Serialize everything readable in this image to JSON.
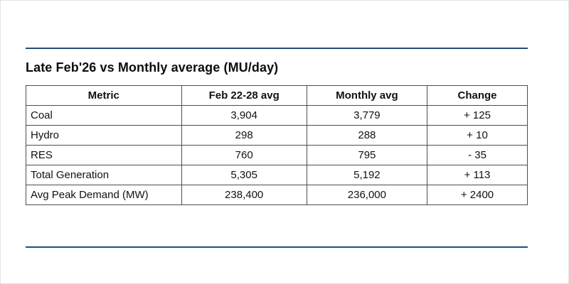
{
  "accent_color": "#1f4e79",
  "title": "Late Feb'26 vs Monthly average (MU/day)",
  "chart_data": {
    "type": "table",
    "title": "Late Feb'26 vs Monthly average (MU/day)",
    "columns": [
      "Metric",
      "Feb 22-28 avg",
      "Monthly avg",
      "Change"
    ],
    "rows": [
      [
        "Coal",
        "3,904",
        "3,779",
        "+ 125"
      ],
      [
        "Hydro",
        "298",
        "288",
        "+ 10"
      ],
      [
        "RES",
        "760",
        "795",
        "- 35"
      ],
      [
        "Total Generation",
        "5,305",
        "5,192",
        "+ 113"
      ],
      [
        "Avg Peak Demand (MW)",
        "238,400",
        "236,000",
        "+ 2400"
      ]
    ]
  }
}
